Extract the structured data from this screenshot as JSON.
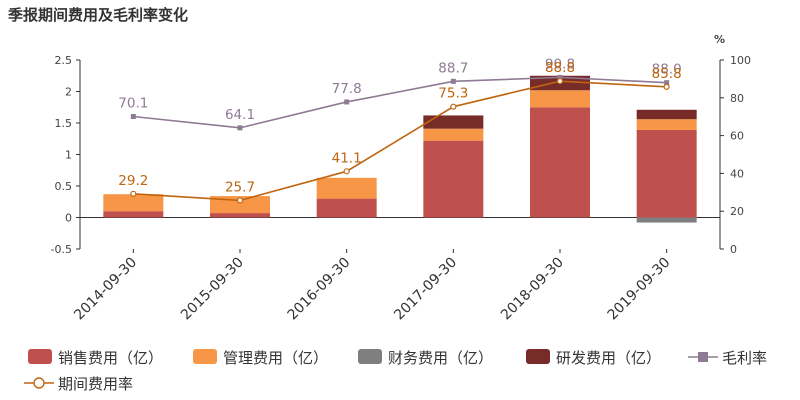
{
  "chart_data": {
    "type": "bar",
    "title": "季报期间费用及毛利率变化",
    "categories": [
      "2014-09-30",
      "2015-09-30",
      "2016-09-30",
      "2017-09-30",
      "2018-09-30",
      "2019-09-30"
    ],
    "stacked": true,
    "series": [
      {
        "name": "销售费用（亿）",
        "type": "bar",
        "axis": "left",
        "color": "#c0504d",
        "values": [
          0.1,
          0.07,
          0.3,
          1.22,
          1.75,
          1.39
        ]
      },
      {
        "name": "管理费用（亿）",
        "type": "bar",
        "axis": "left",
        "color": "#f79646",
        "values": [
          0.27,
          0.27,
          0.33,
          0.19,
          0.27,
          0.17
        ]
      },
      {
        "name": "财务费用（亿）",
        "type": "bar",
        "axis": "left",
        "color": "#7f7f7f",
        "values": [
          0.0,
          0.0,
          0.0,
          0.0,
          0.0,
          -0.08
        ]
      },
      {
        "name": "研发费用（亿）",
        "type": "bar",
        "axis": "left",
        "color": "#772c2a",
        "values": [
          0.0,
          0.0,
          0.0,
          0.21,
          0.23,
          0.15
        ]
      },
      {
        "name": "毛利率",
        "type": "line",
        "axis": "right",
        "color": "#8f7a94",
        "marker": "square",
        "values": [
          70.1,
          64.1,
          77.8,
          88.7,
          90.8,
          88.0
        ],
        "labels": [
          "70.1",
          "64.1",
          "77.8",
          "88.7",
          "90.8",
          "88.0"
        ]
      },
      {
        "name": "期间费用率",
        "type": "line",
        "axis": "right",
        "color": "#c0650f",
        "marker": "circle",
        "values": [
          29.2,
          25.7,
          41.1,
          75.3,
          88.8,
          85.8
        ],
        "labels": [
          "29.2",
          "25.7",
          "41.1",
          "75.3",
          "88.8",
          "85.8"
        ]
      }
    ],
    "y_left": {
      "min": -0.5,
      "max": 2.5,
      "ticks": [
        "-0.5",
        "0",
        "0.5",
        "1",
        "1.5",
        "2",
        "2.5"
      ]
    },
    "y_right": {
      "min": 0,
      "max": 100,
      "unit": "%",
      "ticks": [
        "0",
        "20",
        "40",
        "60",
        "80",
        "100"
      ]
    },
    "legend_position": "bottom",
    "grid": false
  }
}
